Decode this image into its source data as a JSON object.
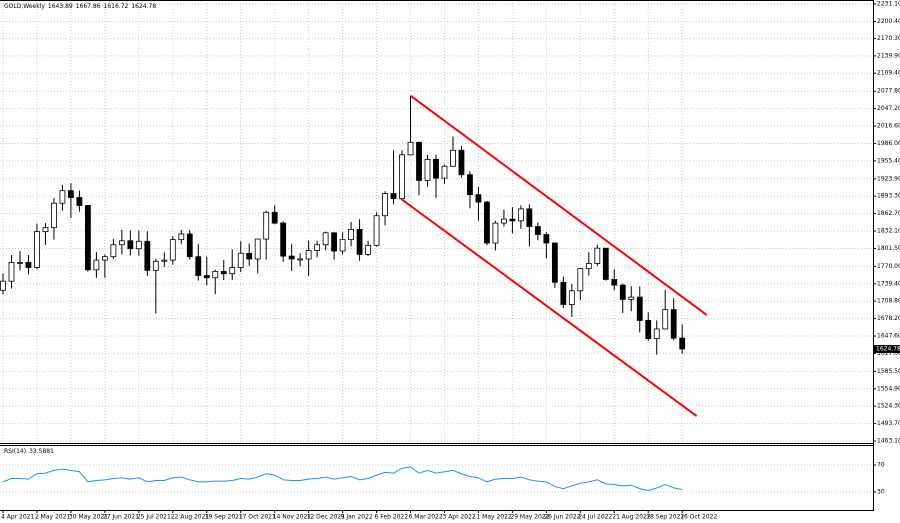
{
  "chart_data": [
    {
      "type": "candlestick",
      "title": "GOLD,Weekly",
      "categories": [
        "4 Apr 2021",
        null,
        null,
        null,
        "2 May 2021",
        null,
        null,
        null,
        "30 May 2021",
        null,
        null,
        null,
        "27 Jun 2021",
        null,
        null,
        null,
        "25 Jul 2021",
        null,
        null,
        null,
        "22 Aug 2021",
        null,
        null,
        null,
        "19 Sep 2021",
        null,
        null,
        null,
        "17 Oct 2021",
        null,
        null,
        null,
        "14 Nov 2021",
        null,
        null,
        null,
        "12 Dec 2021",
        null,
        null,
        null,
        "9 Jan 2022",
        null,
        null,
        null,
        "6 Feb 2022",
        null,
        null,
        null,
        "6 Mar 2022",
        null,
        null,
        null,
        "3 Apr 2022",
        null,
        null,
        null,
        "1 May 2022",
        null,
        null,
        null,
        "29 May 2022",
        null,
        null,
        null,
        "26 Jun 2022",
        null,
        null,
        null,
        "24 Jul 2022",
        null,
        null,
        null,
        "21 Aug 2022",
        null,
        null,
        null,
        "18 Sep 2022",
        null,
        null,
        null,
        "16 Oct 2022"
      ],
      "open": [
        1728,
        1744,
        1777,
        1777,
        1768,
        1831,
        1838,
        1881,
        1903,
        1891,
        1877,
        1764,
        1781,
        1787,
        1808,
        1815,
        1801,
        1814,
        1763,
        1779,
        1781,
        1817,
        1827,
        1787,
        1754,
        1750,
        1761,
        1757,
        1768,
        1793,
        1783,
        1818,
        1865,
        1846,
        1788,
        1783,
        1783,
        1798,
        1808,
        1829,
        1797,
        1817,
        1835,
        1791,
        1807,
        1859,
        1898,
        1889,
        1966,
        1988,
        1921,
        1958,
        1925,
        1946,
        1974,
        1931,
        1896,
        1883,
        1811,
        1846,
        1853,
        1850,
        1871,
        1840,
        1826,
        1811,
        1742,
        1703,
        1727,
        1766,
        1775,
        1802,
        1747,
        1737,
        1712,
        1716,
        1675,
        1643,
        1660,
        1694,
        1643.89
      ],
      "high": [
        1758,
        1790,
        1797,
        1790,
        1845,
        1846,
        1890,
        1913,
        1916,
        1903,
        1878,
        1795,
        1791,
        1818,
        1834,
        1833,
        1833,
        1832,
        1783,
        1795,
        1823,
        1834,
        1834,
        1809,
        1787,
        1764,
        1781,
        1800,
        1814,
        1810,
        1818,
        1868,
        1877,
        1849,
        1809,
        1793,
        1815,
        1815,
        1831,
        1830,
        1830,
        1848,
        1853,
        1815,
        1865,
        1902,
        1974,
        1974,
        2070,
        1989,
        1966,
        1966,
        1949,
        1998,
        1982,
        1937,
        1910,
        1885,
        1850,
        1870,
        1874,
        1877,
        1879,
        1847,
        1830,
        1812,
        1752,
        1739,
        1767,
        1795,
        1808,
        1802,
        1765,
        1740,
        1735,
        1735,
        1689,
        1675,
        1729,
        1714,
        1667.86
      ],
      "low": [
        1721,
        1731,
        1763,
        1756,
        1765,
        1808,
        1817,
        1868,
        1855,
        1866,
        1761,
        1750,
        1750,
        1783,
        1791,
        1789,
        1789,
        1753,
        1687,
        1769,
        1773,
        1809,
        1782,
        1745,
        1737,
        1721,
        1746,
        1746,
        1760,
        1771,
        1758,
        1782,
        1844,
        1778,
        1762,
        1770,
        1753,
        1786,
        1798,
        1782,
        1791,
        1805,
        1780,
        1788,
        1805,
        1842,
        1879,
        1888,
        1967,
        1895,
        1910,
        1890,
        1915,
        1945,
        1926,
        1872,
        1850,
        1807,
        1798,
        1840,
        1828,
        1836,
        1805,
        1816,
        1784,
        1732,
        1697,
        1681,
        1711,
        1754,
        1771,
        1745,
        1728,
        1688,
        1691,
        1654,
        1639,
        1615,
        1659,
        1640,
        1616.72
      ],
      "close": [
        1744,
        1777,
        1777,
        1768,
        1831,
        1838,
        1881,
        1903,
        1891,
        1877,
        1764,
        1781,
        1787,
        1808,
        1815,
        1801,
        1814,
        1763,
        1779,
        1781,
        1817,
        1827,
        1787,
        1754,
        1750,
        1761,
        1757,
        1768,
        1793,
        1783,
        1818,
        1865,
        1846,
        1788,
        1783,
        1783,
        1798,
        1808,
        1829,
        1797,
        1817,
        1835,
        1791,
        1807,
        1859,
        1898,
        1889,
        1966,
        1988,
        1921,
        1958,
        1925,
        1946,
        1974,
        1931,
        1896,
        1883,
        1811,
        1846,
        1853,
        1850,
        1871,
        1840,
        1826,
        1811,
        1742,
        1703,
        1727,
        1766,
        1775,
        1802,
        1747,
        1737,
        1712,
        1716,
        1675,
        1643,
        1660,
        1694,
        1644,
        1624.78
      ],
      "up_color": "#ffffff",
      "down_color": "#000000",
      "ylim": [
        1459.6,
        2238.1
      ],
      "yticks": [
        {
          "value": 2231.1,
          "label": "2231.10"
        },
        {
          "value": 2200.4,
          "label": "2200.40"
        },
        {
          "value": 2170.3,
          "label": "2170.30"
        },
        {
          "value": 2139.9,
          "label": "2139.90"
        },
        {
          "value": 2109.4,
          "label": "2109.40"
        },
        {
          "value": 2077.8,
          "label": "2077.80"
        },
        {
          "value": 2047.2,
          "label": "2047.20"
        },
        {
          "value": 2016.6,
          "label": "2016.60"
        },
        {
          "value": 1986,
          "label": "1986.00"
        },
        {
          "value": 1955.4,
          "label": "1955.40"
        },
        {
          "value": 1923.9,
          "label": "1923.90"
        },
        {
          "value": 1893.3,
          "label": "1893.30"
        },
        {
          "value": 1862.7,
          "label": "1862.70"
        },
        {
          "value": 1832.1,
          "label": "1832.10"
        },
        {
          "value": 1801.5,
          "label": "1801.50"
        },
        {
          "value": 1770,
          "label": "1770.00"
        },
        {
          "value": 1739.4,
          "label": "1739.40"
        },
        {
          "value": 1708.8,
          "label": "1708.80"
        },
        {
          "value": 1678.2,
          "label": "1678.20"
        },
        {
          "value": 1647.6,
          "label": "1647.60"
        },
        {
          "value": 1617,
          "label": "1617.00"
        },
        {
          "value": 1585.5,
          "label": "1585.50"
        },
        {
          "value": 1554.9,
          "label": "1554.90"
        },
        {
          "value": 1524.3,
          "label": "1524.30"
        },
        {
          "value": 1493.7,
          "label": "1493.70"
        },
        {
          "value": 1463.1,
          "label": "1463.10"
        }
      ],
      "grid": true,
      "trendlines": [
        {
          "x": [
            48,
            82.9
          ],
          "y": [
            2070,
            1684.5
          ],
          "color": "#ff0000"
        },
        {
          "x": [
            46.9,
            81.7
          ],
          "y": [
            1888.4,
            1507
          ],
          "color": "#ff0000"
        }
      ]
    },
    {
      "type": "line",
      "title": "RSI(14)",
      "values": [
        45,
        50,
        50,
        49,
        57,
        58,
        62,
        64,
        62,
        60,
        45,
        47,
        48,
        50,
        51,
        49,
        51,
        45,
        47,
        47,
        51,
        52,
        48,
        45,
        45,
        46,
        46,
        47,
        50,
        49,
        52,
        57,
        55,
        48,
        47,
        47,
        49,
        50,
        52,
        49,
        51,
        53,
        48,
        50,
        55,
        59,
        58,
        65,
        67,
        58,
        62,
        58,
        60,
        62,
        57,
        53,
        51,
        45,
        49,
        50,
        50,
        52,
        48,
        46,
        45,
        38,
        35,
        39,
        43,
        45,
        48,
        42,
        41,
        39,
        40,
        35,
        32,
        36,
        41,
        36,
        33.5881
      ],
      "color": "#1e90ff",
      "ylim": [
        3.3,
        98.1
      ],
      "yticks": [
        70,
        30
      ]
    }
  ]
}
